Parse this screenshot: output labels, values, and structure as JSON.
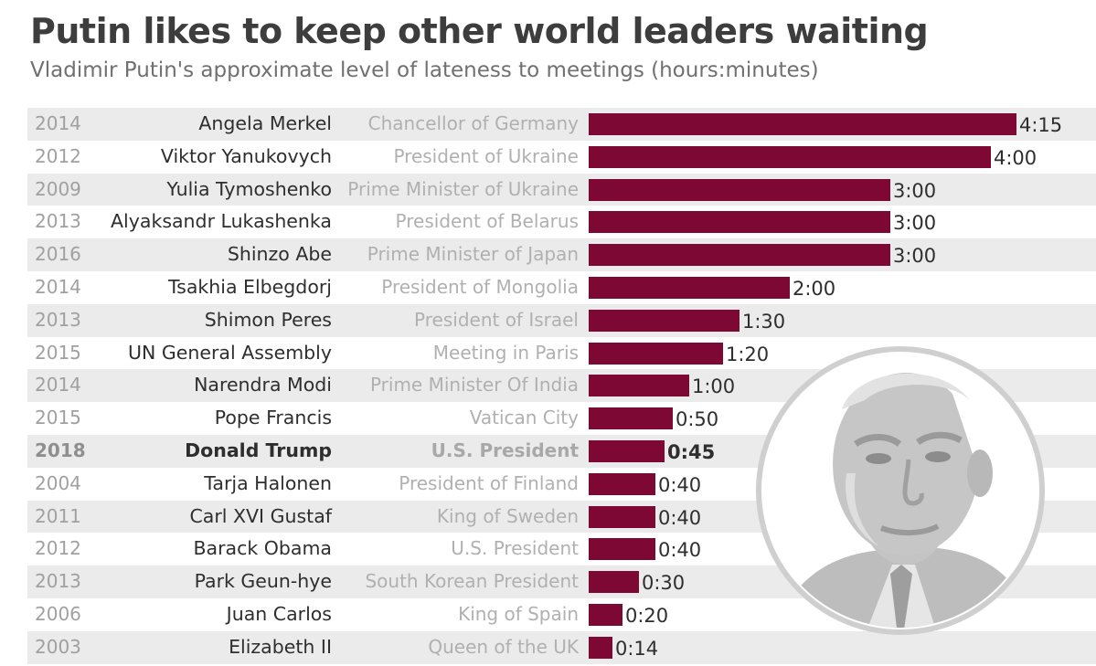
{
  "chart_data": {
    "type": "bar",
    "orientation": "horizontal",
    "title": "Putin likes to keep other world leaders waiting",
    "subtitle": "Vladimir Putin's approximate level of lateness to meetings (hours:minutes)",
    "value_units": "minutes",
    "rows": [
      {
        "year": "2014",
        "name": "Angela Merkel",
        "role": "Chancellor of Germany",
        "label": "4:15",
        "minutes": 255,
        "highlight": false
      },
      {
        "year": "2012",
        "name": "Viktor Yanukovych",
        "role": "President of Ukraine",
        "label": "4:00",
        "minutes": 240,
        "highlight": false
      },
      {
        "year": "2009",
        "name": "Yulia Tymoshenko",
        "role": "Prime Minister of Ukraine",
        "label": "3:00",
        "minutes": 180,
        "highlight": false
      },
      {
        "year": "2013",
        "name": "Alyaksandr Lukashenka",
        "role": "President of Belarus",
        "label": "3:00",
        "minutes": 180,
        "highlight": false
      },
      {
        "year": "2016",
        "name": "Shinzo Abe",
        "role": "Prime Minister of Japan",
        "label": "3:00",
        "minutes": 180,
        "highlight": false
      },
      {
        "year": "2014",
        "name": "Tsakhia Elbegdorj",
        "role": "President of Mongolia",
        "label": "2:00",
        "minutes": 120,
        "highlight": false
      },
      {
        "year": "2013",
        "name": "Shimon Peres",
        "role": "President of Israel",
        "label": "1:30",
        "minutes": 90,
        "highlight": false
      },
      {
        "year": "2015",
        "name": "UN General Assembly",
        "role": "Meeting in Paris",
        "label": "1:20",
        "minutes": 80,
        "highlight": false
      },
      {
        "year": "2014",
        "name": "Narendra Modi",
        "role": "Prime Minister Of India",
        "label": "1:00",
        "minutes": 60,
        "highlight": false
      },
      {
        "year": "2015",
        "name": "Pope Francis",
        "role": "Vatican City",
        "label": "0:50",
        "minutes": 50,
        "highlight": false
      },
      {
        "year": "2018",
        "name": "Donald Trump",
        "role": "U.S. President",
        "label": "0:45",
        "minutes": 45,
        "highlight": true
      },
      {
        "year": "2004",
        "name": "Tarja Halonen",
        "role": "President of Finland",
        "label": "0:40",
        "minutes": 40,
        "highlight": false
      },
      {
        "year": "2011",
        "name": "Carl XVI Gustaf",
        "role": "King of Sweden",
        "label": "0:40",
        "minutes": 40,
        "highlight": false
      },
      {
        "year": "2012",
        "name": "Barack Obama",
        "role": "U.S. President",
        "label": "0:40",
        "minutes": 40,
        "highlight": false
      },
      {
        "year": "2013",
        "name": "Park Geun-hye",
        "role": "South Korean President",
        "label": "0:30",
        "minutes": 30,
        "highlight": false
      },
      {
        "year": "2006",
        "name": "Juan Carlos",
        "role": "King of Spain",
        "label": "0:20",
        "minutes": 20,
        "highlight": false
      },
      {
        "year": "2003",
        "name": "Elizabeth II",
        "role": "Queen of the UK",
        "label": "0:14",
        "minutes": 14,
        "highlight": false
      }
    ]
  },
  "colors": {
    "bar": "#7d0833",
    "row_shade": "#ebebeb",
    "portrait": "#c8c8c8"
  },
  "portrait": {
    "icon": "putin-portrait-icon"
  }
}
